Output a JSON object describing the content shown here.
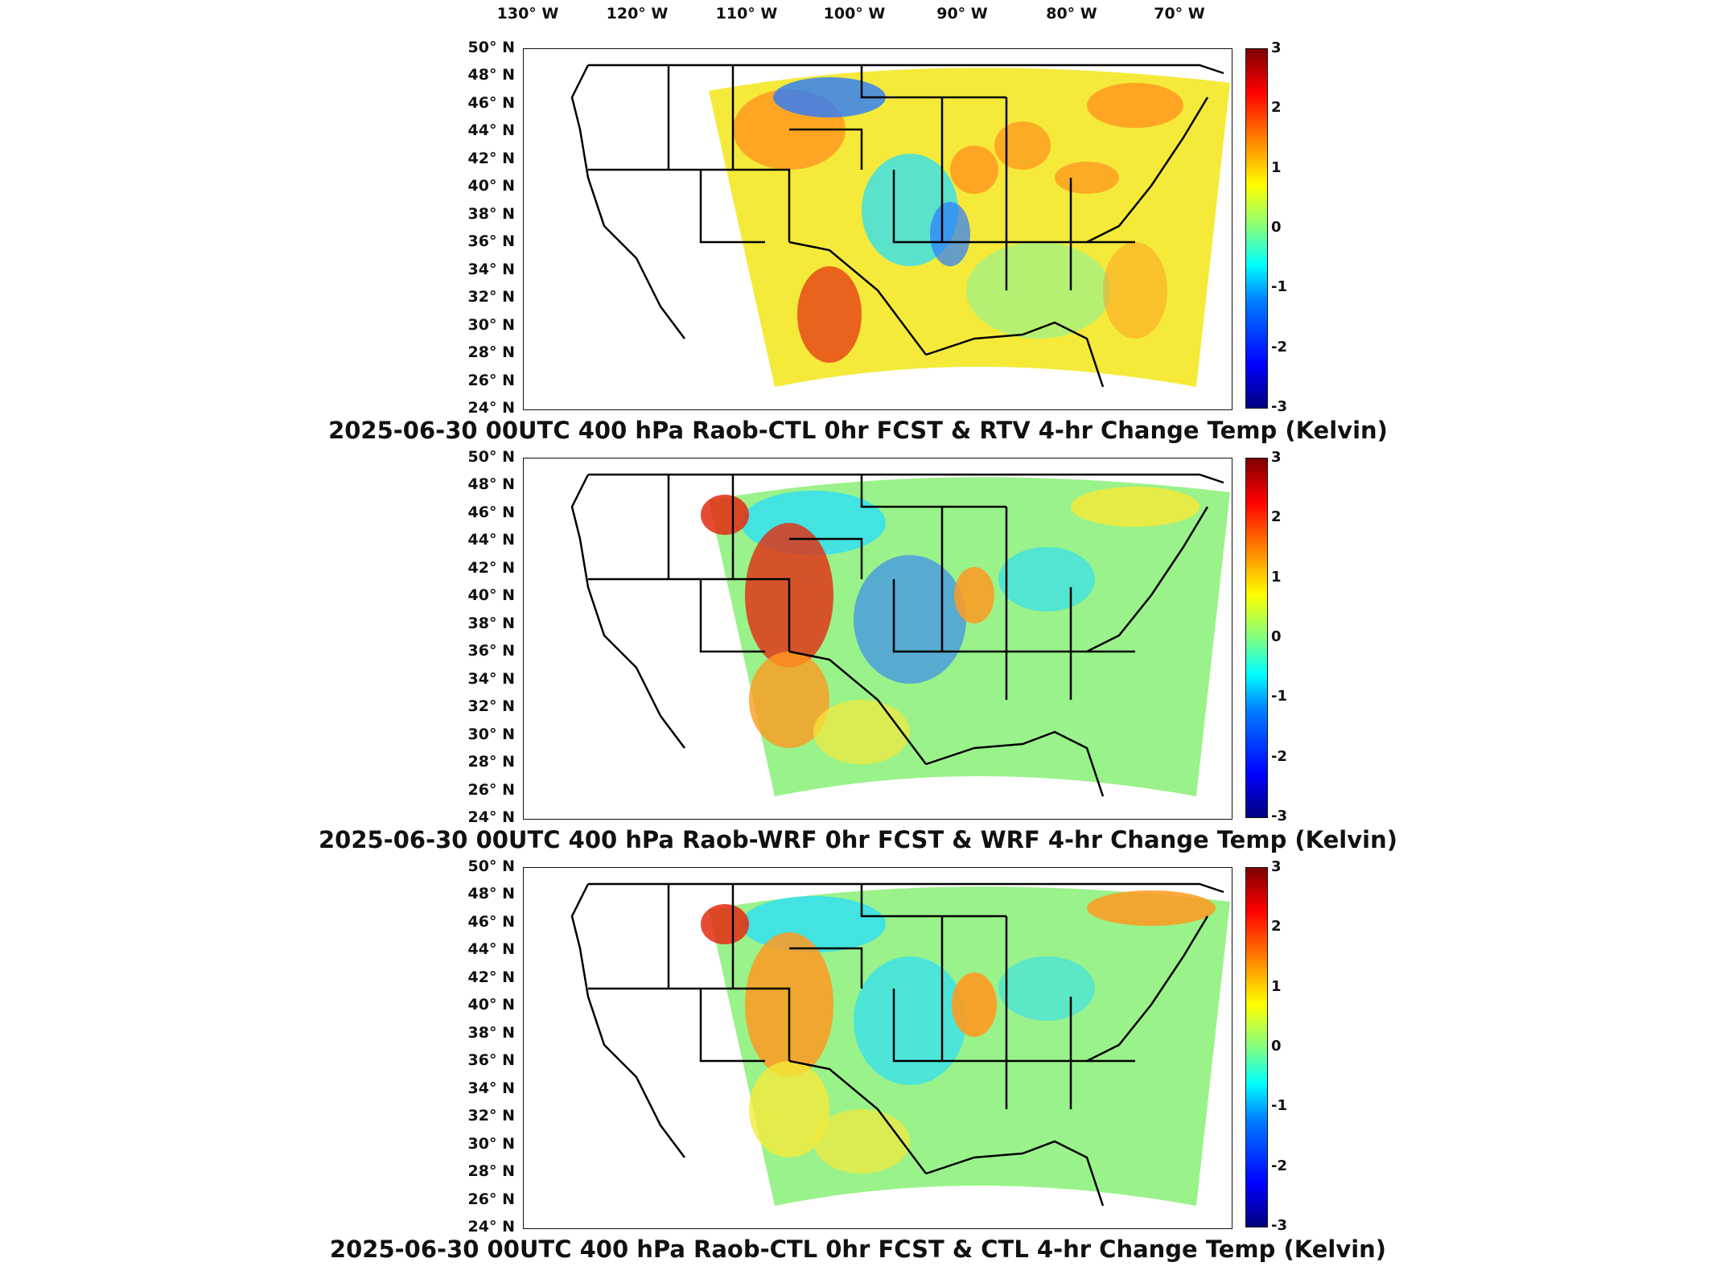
{
  "lon_labels": [
    "130° W",
    "120° W",
    "110° W",
    "100° W",
    "90° W",
    "80° W",
    "70° W"
  ],
  "lat_labels": [
    "50° N",
    "48° N",
    "46° N",
    "44° N",
    "42° N",
    "40° N",
    "38° N",
    "36° N",
    "34° N",
    "32° N",
    "30° N",
    "28° N",
    "26° N",
    "24° N"
  ],
  "colorbar": {
    "ticks": [
      "3",
      "2",
      "1",
      "0",
      "-1",
      "-2",
      "-3"
    ],
    "colormap": "jet",
    "min": -3,
    "max": 3
  },
  "panels": [
    {
      "title": "2025-06-30 00UTC 400 hPa Raob-CTL 0hr FCST & RTV 4-hr Change Temp (Kelvin)"
    },
    {
      "title": "2025-06-30 00UTC 400 hPa Raob-WRF 0hr FCST & WRF 4-hr Change Temp (Kelvin)"
    },
    {
      "title": "2025-06-30 00UTC 400 hPa Raob-CTL 0hr FCST & CTL 4-hr Change Temp (Kelvin)"
    }
  ],
  "colors": {
    "blue": "#2b7bff",
    "cyan": "#33e0f0",
    "green": "#9af28a",
    "yellow": "#f5ea3a",
    "orange": "#ff9a20",
    "red": "#e52a10"
  }
}
